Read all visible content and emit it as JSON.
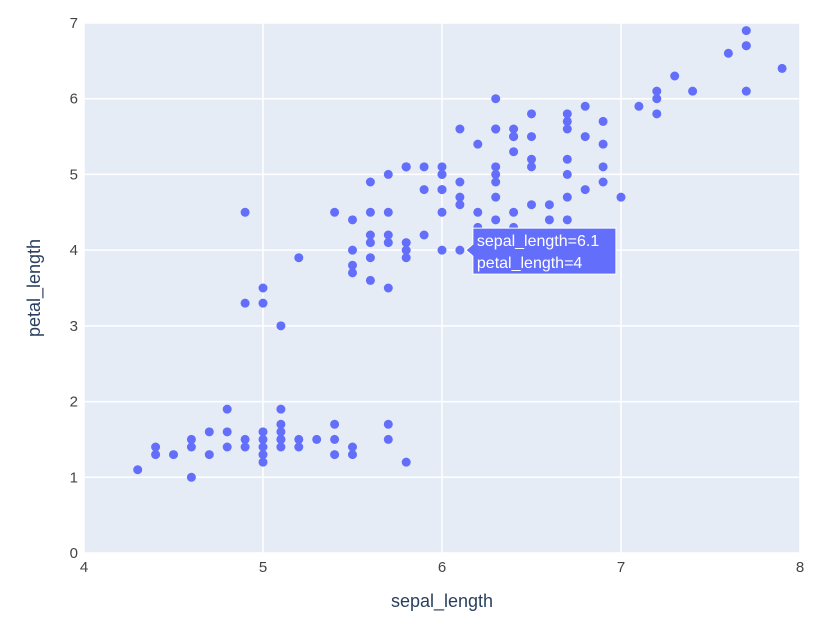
{
  "chart_data": {
    "type": "scatter",
    "xlabel": "sepal_length",
    "ylabel": "petal_length",
    "xlim": [
      4,
      8
    ],
    "ylim": [
      0,
      7
    ],
    "x_ticks": [
      "4",
      "5",
      "6",
      "7",
      "8"
    ],
    "y_ticks": [
      "0",
      "1",
      "2",
      "3",
      "4",
      "5",
      "6",
      "7"
    ],
    "grid": true,
    "colors": {
      "background": "#E5ECF6",
      "grid": "#ffffff",
      "marker": "#636EFA"
    },
    "series": [
      {
        "x": [
          4.3,
          4.4,
          4.4,
          4.5,
          4.6,
          4.6,
          4.6,
          4.7,
          4.7,
          4.8,
          4.8,
          4.8,
          4.9,
          4.9,
          5.0,
          5.0,
          5.0,
          5.0,
          5.0,
          5.1,
          5.1,
          5.1,
          5.1,
          5.1,
          5.1,
          5.2,
          5.2,
          5.3,
          5.4,
          5.4,
          5.4,
          5.5,
          5.5,
          5.7,
          5.7,
          5.8,
          4.9,
          4.9,
          5.0,
          5.0,
          5.1,
          5.2,
          5.4,
          5.5,
          5.5,
          5.5,
          5.5,
          5.6,
          5.6,
          5.6,
          5.6,
          5.6,
          5.7,
          5.7,
          5.7,
          5.7,
          5.8,
          5.8,
          5.8,
          5.8,
          5.9,
          5.9,
          6.0,
          6.0,
          6.0,
          6.0,
          6.1,
          6.1,
          6.1,
          6.2,
          6.2,
          6.3,
          6.3,
          6.3,
          6.4,
          6.4,
          6.5,
          6.6,
          6.6,
          6.7,
          6.7,
          6.7,
          6.8,
          6.9,
          7.0,
          5.6,
          5.7,
          5.8,
          5.8,
          5.9,
          6.0,
          6.0,
          6.0,
          6.1,
          6.1,
          6.2,
          6.3,
          6.3,
          6.3,
          6.3,
          6.3,
          6.4,
          6.4,
          6.4,
          6.4,
          6.5,
          6.5,
          6.5,
          6.5,
          6.7,
          6.7,
          6.7,
          6.7,
          6.8,
          6.8,
          6.9,
          6.9,
          6.9,
          7.1,
          7.2,
          7.2,
          7.2,
          7.3,
          7.4,
          7.6,
          7.7,
          7.7,
          7.7,
          7.7,
          7.9
        ],
        "y": [
          1.1,
          1.3,
          1.4,
          1.3,
          1.0,
          1.4,
          1.5,
          1.3,
          1.6,
          1.4,
          1.6,
          1.9,
          1.4,
          1.5,
          1.2,
          1.3,
          1.4,
          1.5,
          1.6,
          1.4,
          1.5,
          1.6,
          1.7,
          1.9,
          1.5,
          1.4,
          1.5,
          1.5,
          1.3,
          1.5,
          1.7,
          1.3,
          1.4,
          1.5,
          1.7,
          1.2,
          3.3,
          4.5,
          3.3,
          3.5,
          3.0,
          3.9,
          4.5,
          3.7,
          3.8,
          4.0,
          4.4,
          3.6,
          3.9,
          4.1,
          4.2,
          4.5,
          3.5,
          4.1,
          4.2,
          4.5,
          3.9,
          4.0,
          4.1,
          5.1,
          4.2,
          4.8,
          4.0,
          4.5,
          5.0,
          5.1,
          4.0,
          4.6,
          4.7,
          4.3,
          4.5,
          4.4,
          4.7,
          4.9,
          4.3,
          4.5,
          4.6,
          4.4,
          4.6,
          4.4,
          4.7,
          5.0,
          4.8,
          4.9,
          4.7,
          4.9,
          5.0,
          5.1,
          5.1,
          5.1,
          4.8,
          5.0,
          4.8,
          4.9,
          5.6,
          5.4,
          5.0,
          5.1,
          5.6,
          5.6,
          6.0,
          5.3,
          5.5,
          5.6,
          5.5,
          5.1,
          5.2,
          5.5,
          5.8,
          5.2,
          5.6,
          5.7,
          5.8,
          5.5,
          5.9,
          5.1,
          5.4,
          5.7,
          5.9,
          5.8,
          6.0,
          6.1,
          6.3,
          6.1,
          6.6,
          6.1,
          6.7,
          6.7,
          6.9,
          6.4
        ]
      }
    ],
    "hover": {
      "x": 6.1,
      "y": 4.0,
      "line1": "sepal_length=6.1",
      "line2": "petal_length=4"
    }
  }
}
